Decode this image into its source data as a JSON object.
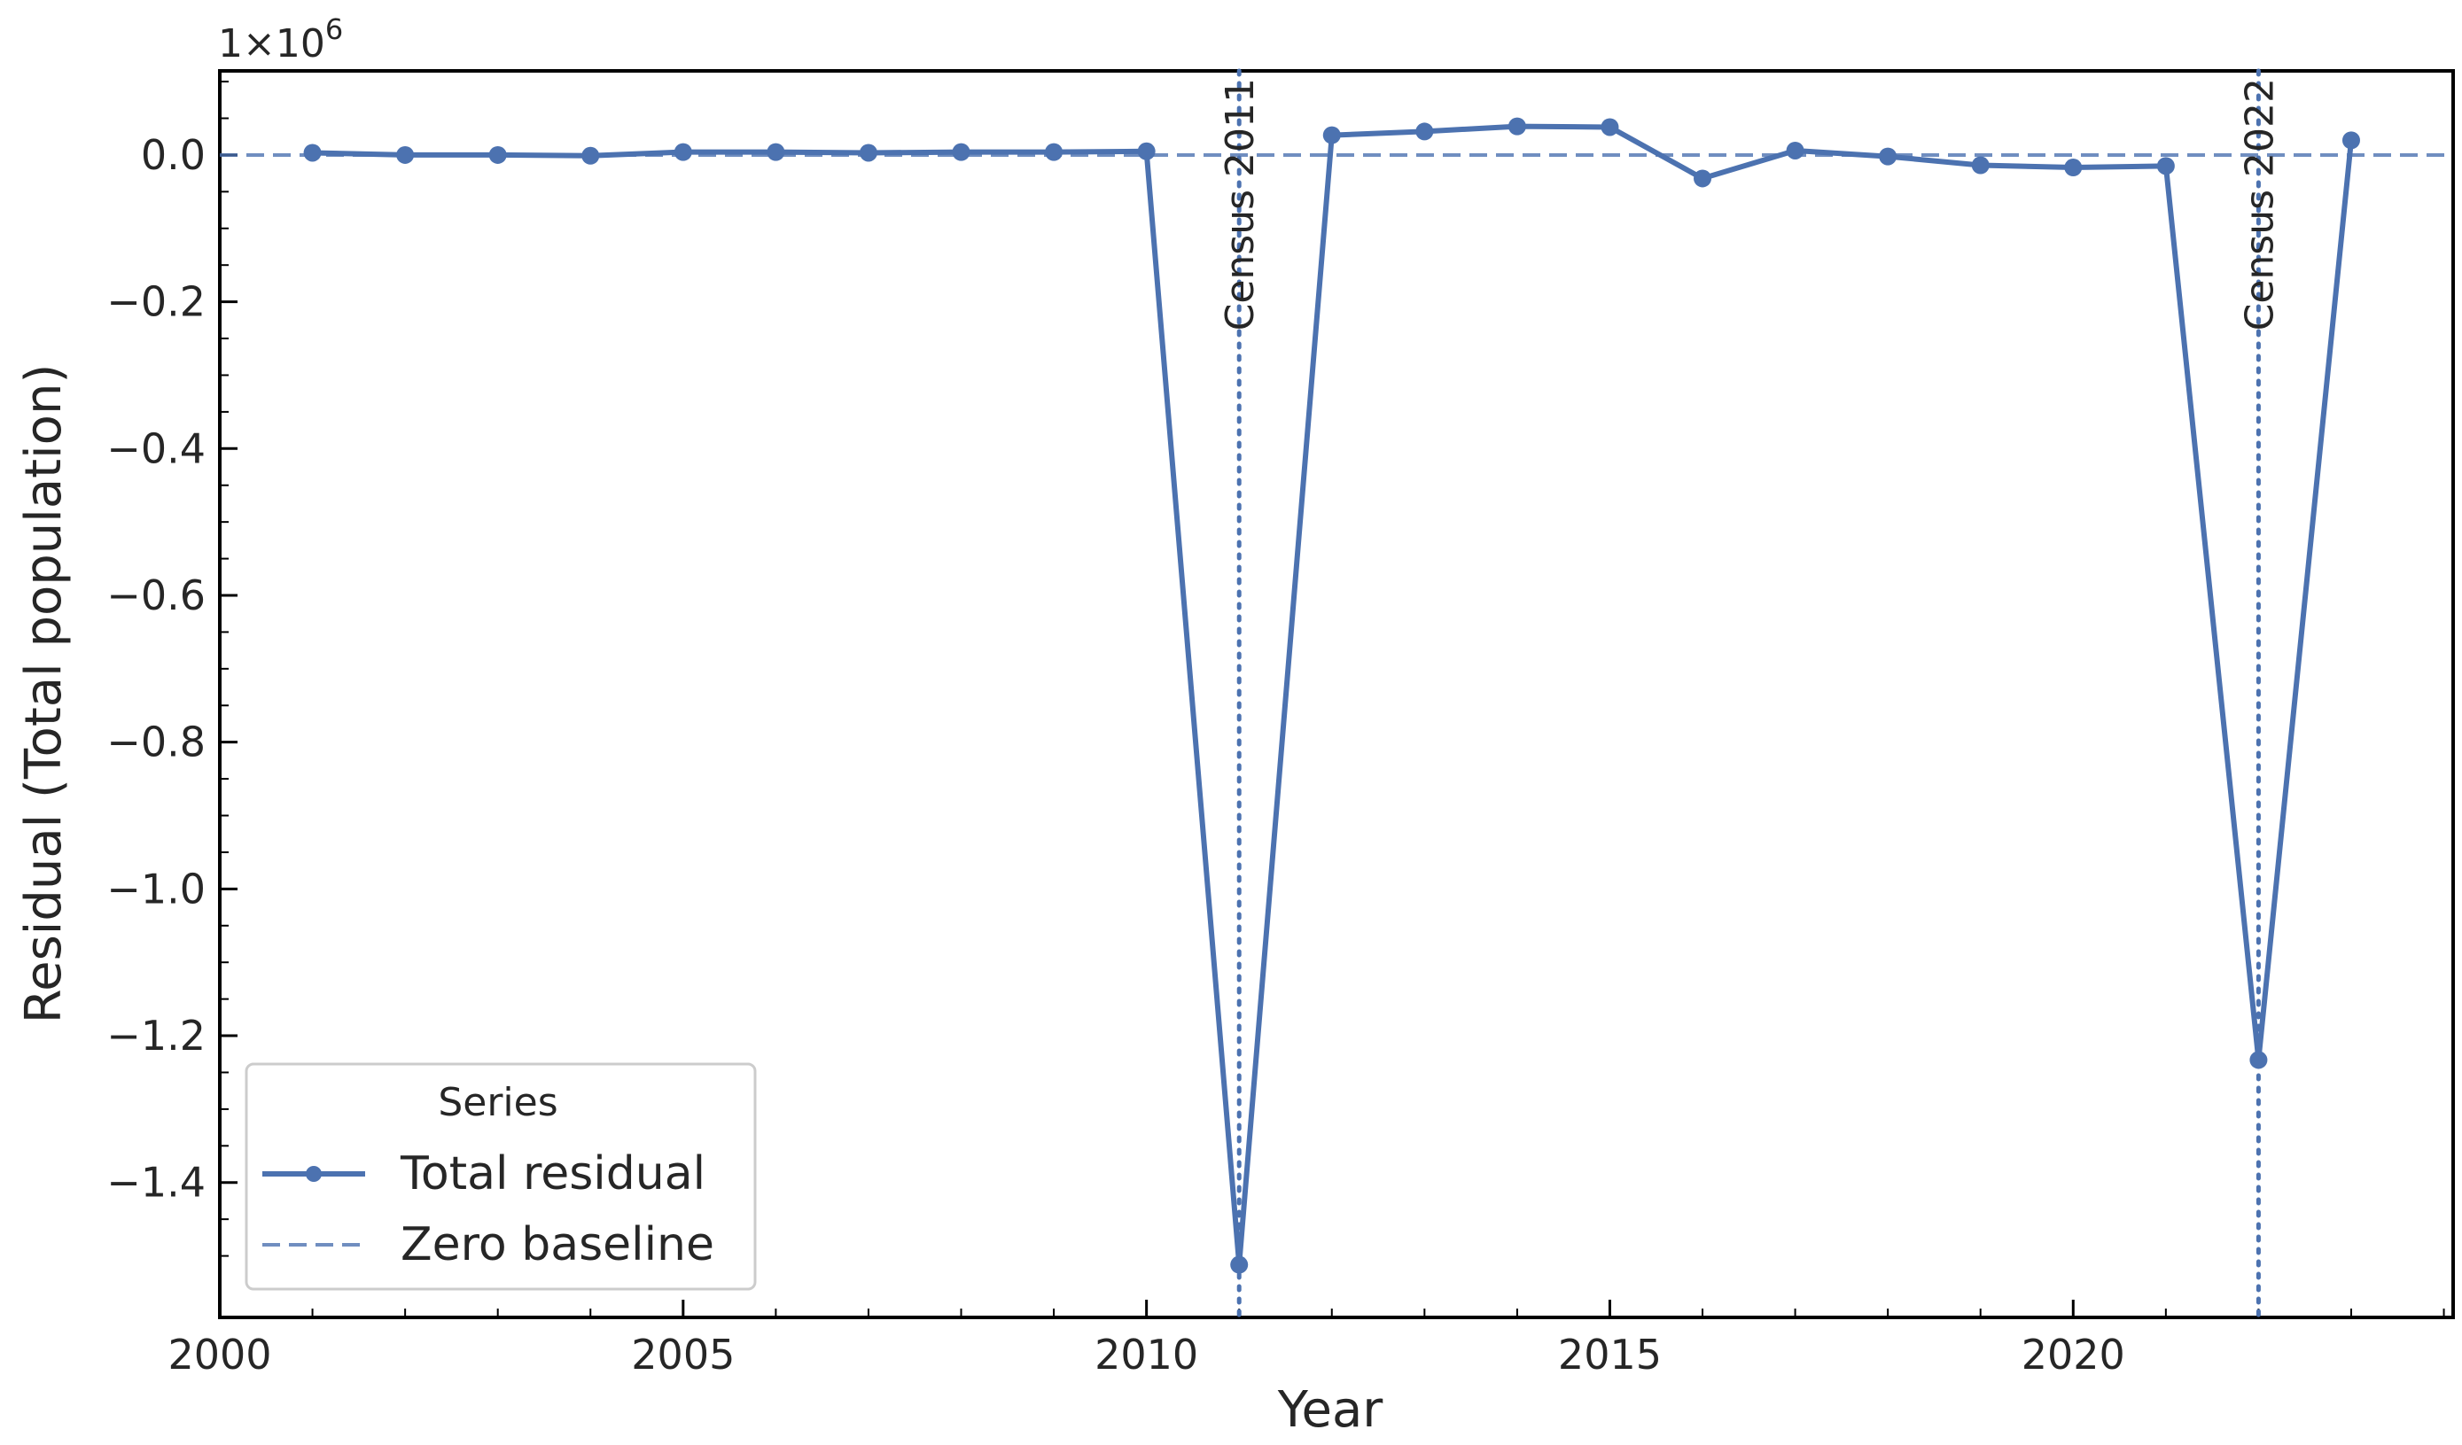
{
  "chart_data": {
    "type": "line",
    "xlabel": "Year",
    "ylabel": "Residual (Total population)",
    "y_offset_text": "1×10",
    "y_offset_exponent": "6",
    "y_scale": 1000000,
    "xlim": [
      2000,
      2024.1
    ],
    "ylim": [
      -1.5838,
      0.1146
    ],
    "x_ticks": [
      2000,
      2005,
      2010,
      2015,
      2020
    ],
    "x_tick_labels": [
      "2000",
      "2005",
      "2010",
      "2015",
      "2020"
    ],
    "y_ticks": [
      0.0,
      -0.2,
      -0.4,
      -0.6,
      -0.8,
      -1.0,
      -1.2,
      -1.4
    ],
    "y_tick_labels": [
      "0.0",
      "−0.2",
      "−0.4",
      "−0.6",
      "−0.8",
      "−1.0",
      "−1.2",
      "−1.4"
    ],
    "grid": false,
    "series": [
      {
        "name": "Total residual",
        "color": "#4c72b0",
        "style": "solid-with-markers",
        "x": [
          2001,
          2002,
          2003,
          2004,
          2005,
          2006,
          2007,
          2008,
          2009,
          2010,
          2011,
          2012,
          2013,
          2014,
          2015,
          2016,
          2017,
          2018,
          2019,
          2020,
          2021,
          2022,
          2023
        ],
        "y": [
          0.003,
          0.0,
          0.0,
          -0.001,
          0.004,
          0.004,
          0.003,
          0.004,
          0.004,
          0.005,
          -1.512,
          0.027,
          0.032,
          0.039,
          0.038,
          -0.032,
          0.006,
          -0.002,
          -0.014,
          -0.017,
          -0.015,
          -1.233,
          0.02
        ]
      },
      {
        "name": "Zero baseline",
        "color": "#4c72b0",
        "style": "dashed",
        "y_constant": 0
      }
    ],
    "annotations": [
      {
        "x": 2011,
        "label": "Census 2011"
      },
      {
        "x": 2022,
        "label": "Census 2022"
      }
    ],
    "legend": {
      "title": "Series",
      "placement": "lower-left",
      "entries": [
        "Total residual",
        "Zero baseline"
      ]
    }
  }
}
